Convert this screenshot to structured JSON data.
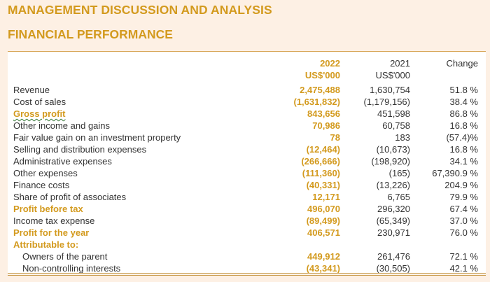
{
  "heading": "MANAGEMENT DISCUSSION AND ANALYSIS",
  "subheading": "FINANCIAL PERFORMANCE",
  "columns": {
    "y2022_year": "2022",
    "y2022_unit": "US$'000",
    "y2021_year": "2021",
    "y2021_unit": "US$'000",
    "change": "Change"
  },
  "rows": [
    {
      "label": "Revenue",
      "v2022": "2,475,488",
      "v2021": "1,630,754",
      "change": "51.8 %"
    },
    {
      "label": "Cost of sales",
      "v2022": "(1,631,832)",
      "v2021": "(1,179,156)",
      "change": "38.4 %"
    },
    {
      "label": "Gross profit",
      "v2022": "843,656",
      "v2021": "451,598",
      "change": "86.8 %"
    },
    {
      "label": "Other income and gains",
      "v2022": "70,986",
      "v2021": "60,758",
      "change": "16.8 %"
    },
    {
      "label": "Fair value gain on an investment property",
      "v2022": "78",
      "v2021": "183",
      "change": "(57.4)%"
    },
    {
      "label": "Selling and distribution expenses",
      "v2022": "(12,464)",
      "v2021": "(10,673)",
      "change": "16.8 %"
    },
    {
      "label": "Administrative expenses",
      "v2022": "(266,666)",
      "v2021": "(198,920)",
      "change": "34.1 %"
    },
    {
      "label": "Other expenses",
      "v2022": "(111,360)",
      "v2021": "(165)",
      "change": "67,390.9 %"
    },
    {
      "label": "Finance costs",
      "v2022": "(40,331)",
      "v2021": "(13,226)",
      "change": "204.9 %"
    },
    {
      "label": "Share of profit of associates",
      "v2022": "12,171",
      "v2021": "6,765",
      "change": "79.9 %"
    },
    {
      "label": "Profit before tax",
      "v2022": "496,070",
      "v2021": "296,320",
      "change": "67.4 %"
    },
    {
      "label": "Income tax expense",
      "v2022": "(89,499)",
      "v2021": "(65,349)",
      "change": "37.0 %"
    },
    {
      "label": "Profit for the year",
      "v2022": "406,571",
      "v2021": "230,971",
      "change": "76.0 %"
    },
    {
      "label": "Attributable to:",
      "v2022": "",
      "v2021": "",
      "change": ""
    },
    {
      "label": "Owners of the parent",
      "v2022": "449,912",
      "v2021": "261,476",
      "change": "72.1 %"
    },
    {
      "label": "Non-controlling interests",
      "v2022": "(43,341)",
      "v2021": "(30,505)",
      "change": "42.1 %"
    }
  ]
}
